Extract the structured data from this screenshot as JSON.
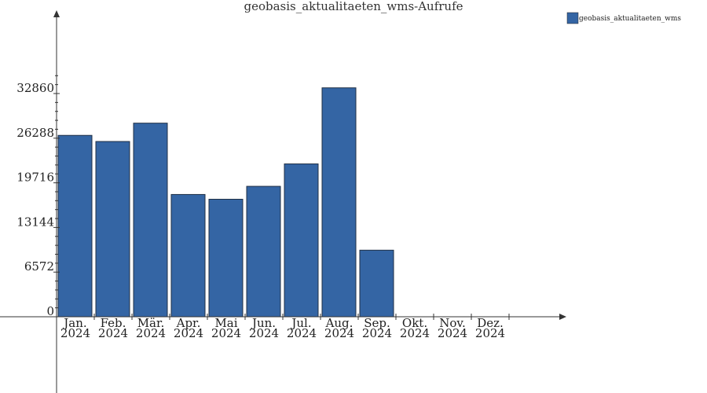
{
  "chart_data": {
    "type": "bar",
    "title": "geobasis_aktualitaeten_wms-Aufrufe",
    "categories": [
      [
        "Jan.",
        "2024"
      ],
      [
        "Feb.",
        "2024"
      ],
      [
        "Mär.",
        "2024"
      ],
      [
        "Apr.",
        "2024"
      ],
      [
        "Mai",
        "2024"
      ],
      [
        "Jun.",
        "2024"
      ],
      [
        "Jul.",
        "2024"
      ],
      [
        "Aug.",
        "2024"
      ],
      [
        "Sep.",
        "2024"
      ],
      [
        "Okt.",
        "2024"
      ],
      [
        "Nov.",
        "2024"
      ],
      [
        "Dez.",
        "2024"
      ]
    ],
    "series": [
      {
        "name": "geobasis_aktualitaeten_wms",
        "color": "#3465a4",
        "values": [
          26700,
          25800,
          28500,
          18000,
          17300,
          19200,
          22500,
          33700,
          9800,
          0,
          0,
          0
        ]
      }
    ],
    "y_ticks": [
      "0",
      "6572",
      "13144",
      "19716",
      "26288",
      "32860"
    ],
    "ylim": [
      0,
      32860
    ],
    "legend_position": "top-right",
    "grid": false
  }
}
